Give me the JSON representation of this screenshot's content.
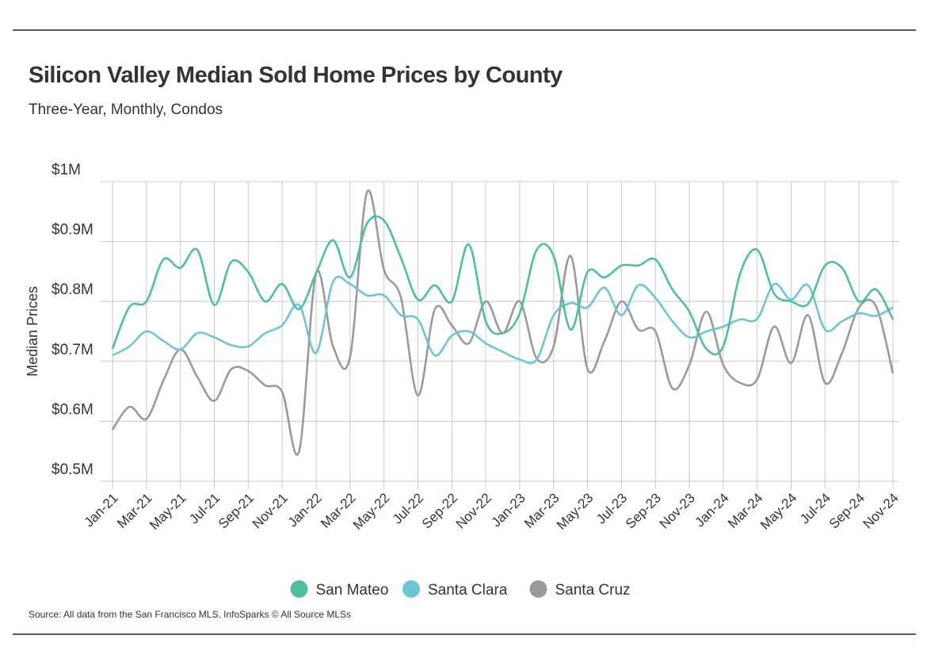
{
  "chart_data": {
    "type": "line",
    "title": "Silicon Valley Median Sold Home Prices by County",
    "subtitle": "Three-Year, Monthly, Condos",
    "y_label": "Median Prices",
    "source": "Source:  All data from the San Francisco MLS. InfoSparks © All Source MLSs",
    "categories": [
      "Jan-21",
      null,
      "Mar-21",
      null,
      "May-21",
      null,
      "Jul-21",
      null,
      "Sep-21",
      null,
      "Nov-21",
      null,
      "Jan-22",
      null,
      "Mar-22",
      null,
      "May-22",
      null,
      "Jul-22",
      null,
      "Sep-22",
      null,
      "Nov-22",
      null,
      "Jan-23",
      null,
      "Mar-23",
      null,
      "May-23",
      null,
      "Jul-23",
      null,
      "Sep-23",
      null,
      "Nov-23",
      null,
      "Jan-24",
      null,
      "Mar-24",
      null,
      "May-24",
      null,
      "Jul-24",
      null,
      "Sep-24",
      null,
      "Nov-24"
    ],
    "ylim": [
      500000,
      1000000
    ],
    "yticks": [
      {
        "value": 500000,
        "label": "$0.5M"
      },
      {
        "value": 600000,
        "label": "$0.6M"
      },
      {
        "value": 700000,
        "label": "$0.7M"
      },
      {
        "value": 800000,
        "label": "$0.8M"
      },
      {
        "value": 900000,
        "label": "$0.9M"
      },
      {
        "value": 1000000,
        "label": "$1M"
      }
    ],
    "grid": true,
    "legend": "bottom",
    "series": [
      {
        "name": "San Mateo",
        "color": "#4dbda4",
        "values": [
          721000,
          791000,
          800000,
          870000,
          856000,
          886000,
          794000,
          866000,
          849000,
          800000,
          829000,
          787000,
          847000,
          902000,
          840000,
          930000,
          935000,
          873000,
          803000,
          827000,
          800000,
          895000,
          767000,
          747000,
          780000,
          886000,
          876000,
          753000,
          849000,
          840000,
          860000,
          860000,
          870000,
          820000,
          783000,
          721000,
          725000,
          847000,
          886000,
          813000,
          800000,
          796000,
          860000,
          856000,
          800000,
          820000,
          770000
        ]
      },
      {
        "name": "Santa Clara",
        "color": "#6cc5d3",
        "values": [
          710000,
          725000,
          750000,
          734000,
          720000,
          747000,
          740000,
          727000,
          725000,
          747000,
          760000,
          794000,
          714000,
          833000,
          829000,
          810000,
          810000,
          777000,
          770000,
          710000,
          743000,
          750000,
          730000,
          716000,
          703000,
          703000,
          777000,
          797000,
          790000,
          823000,
          777000,
          827000,
          806000,
          767000,
          740000,
          750000,
          758000,
          770000,
          771000,
          829000,
          803000,
          827000,
          753000,
          767000,
          780000,
          776000,
          790000
        ]
      },
      {
        "name": "Santa Cruz",
        "color": "#9a9a9a",
        "values": [
          586000,
          624000,
          604000,
          668000,
          720000,
          674000,
          634000,
          687000,
          684000,
          660000,
          649000,
          550000,
          847000,
          725000,
          707000,
          982000,
          853000,
          806000,
          643000,
          787000,
          760000,
          730000,
          800000,
          747000,
          800000,
          705000,
          725000,
          876000,
          687000,
          734000,
          800000,
          753000,
          750000,
          655000,
          694000,
          783000,
          694000,
          664000,
          670000,
          758000,
          697000,
          777000,
          664000,
          714000,
          790000,
          792000,
          680000
        ]
      }
    ]
  }
}
